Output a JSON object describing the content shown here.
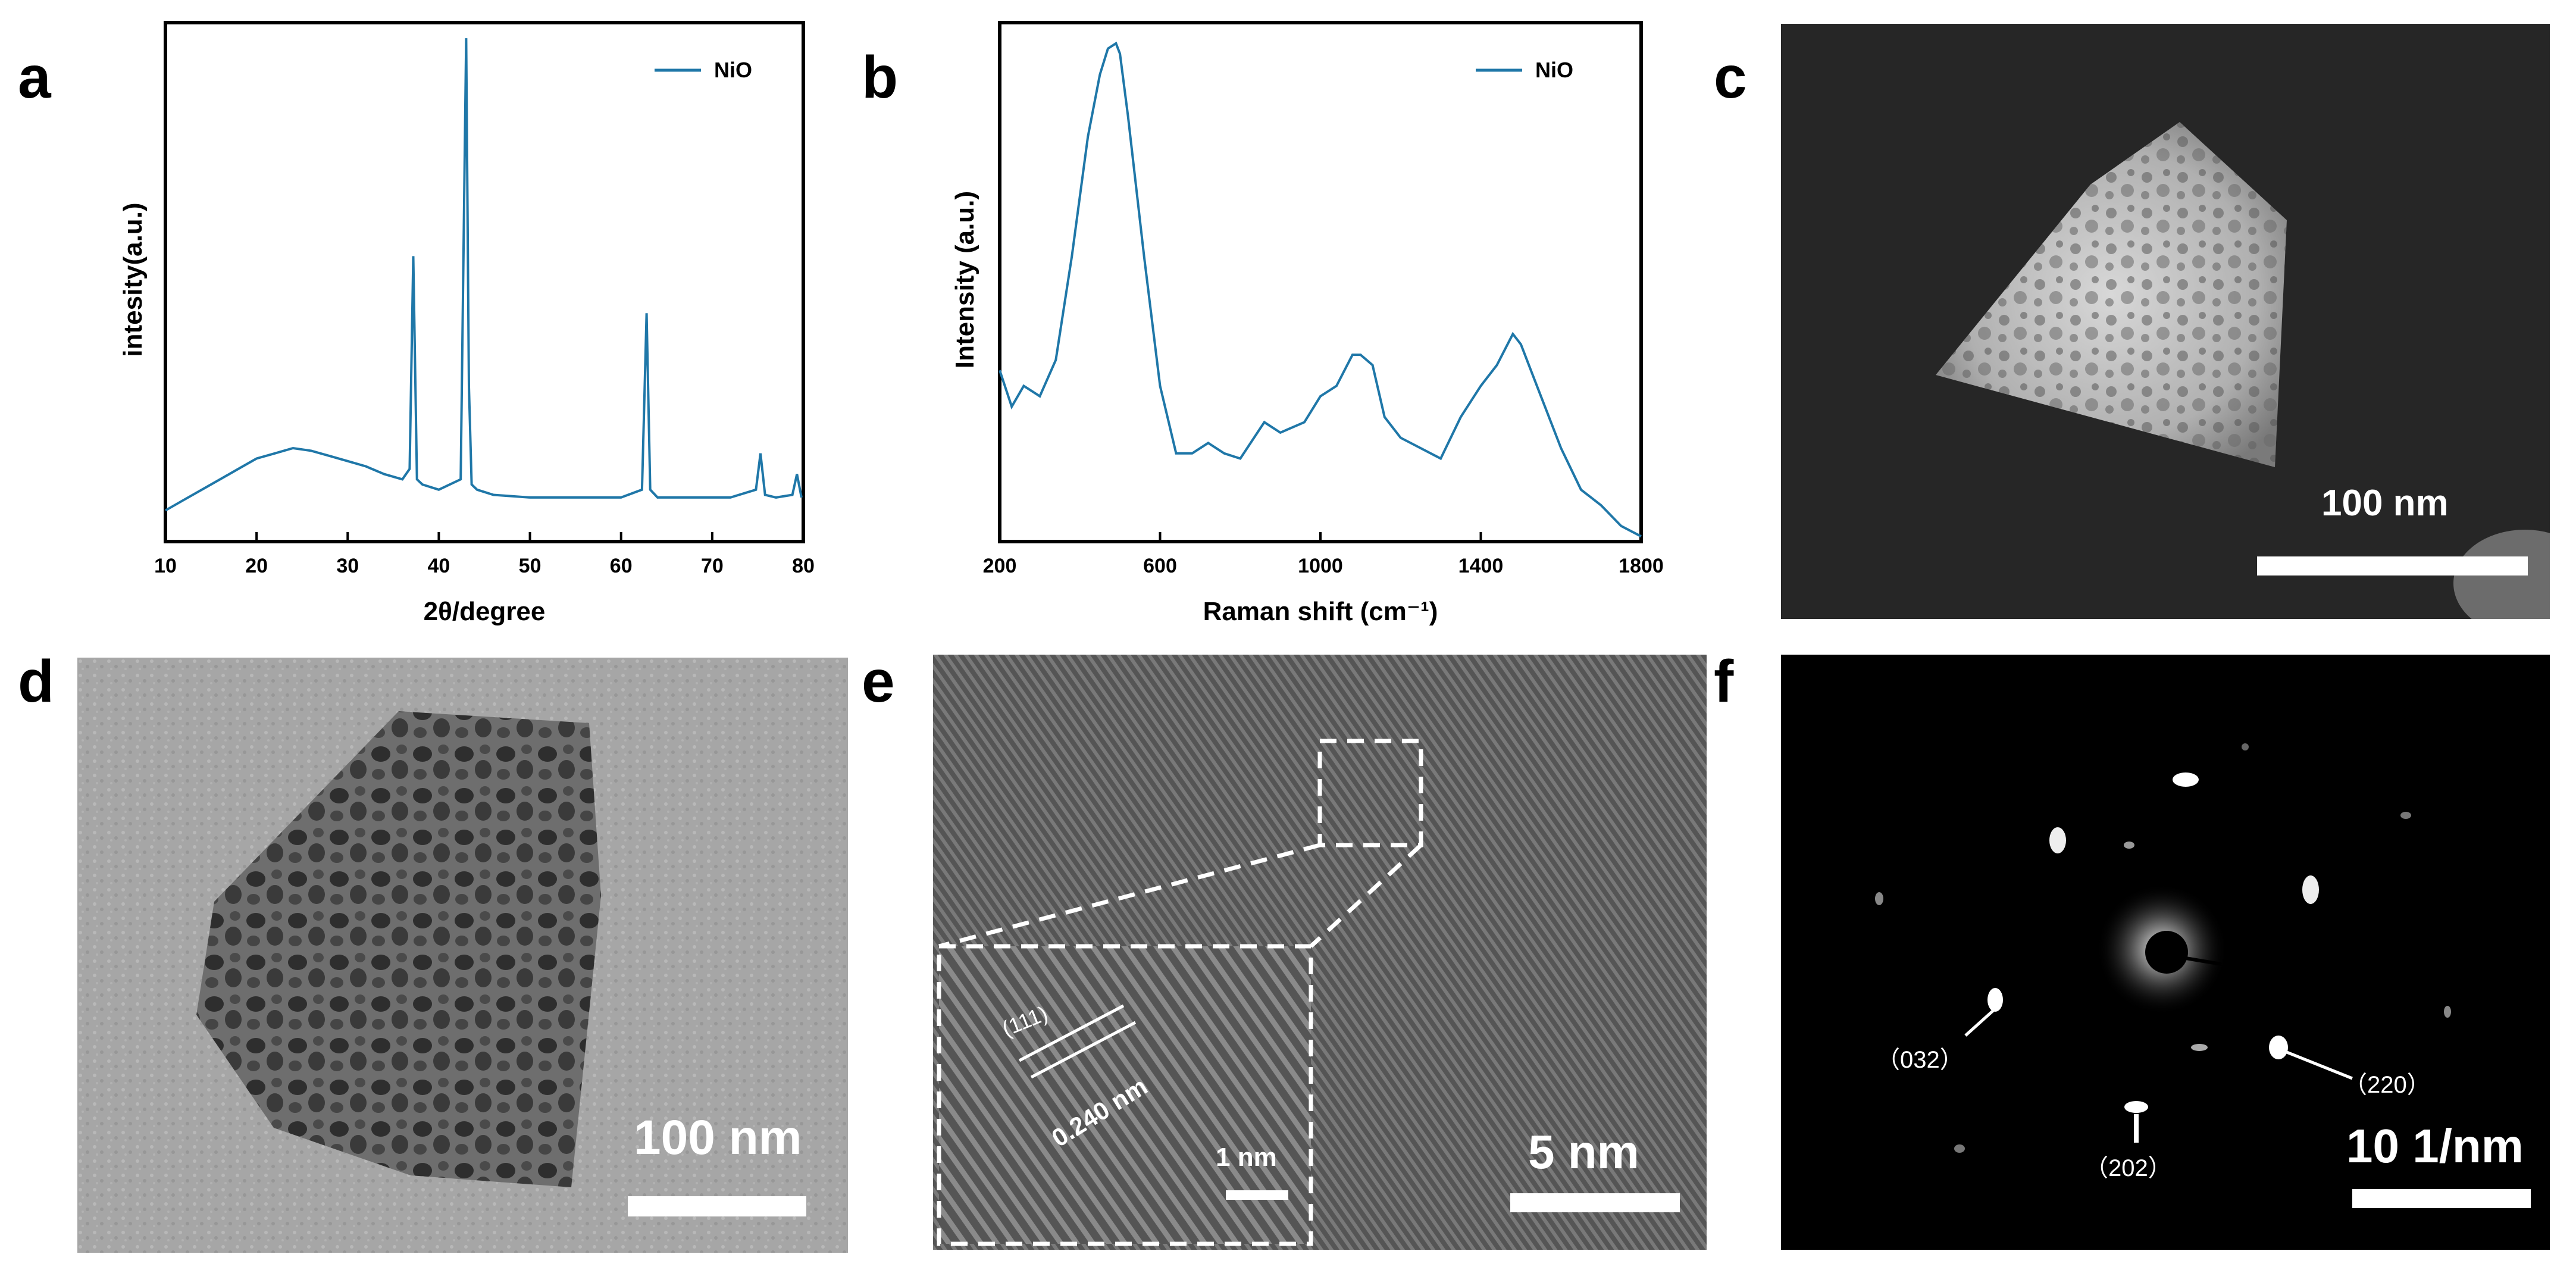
{
  "panels": {
    "a": "a",
    "b": "b",
    "c": "c",
    "d": "d",
    "e": "e",
    "f": "f"
  },
  "colors": {
    "line": "#1f77a8"
  },
  "chart_data": [
    {
      "type": "line",
      "panel": "a",
      "title": "",
      "xlabel": "2θ/degree",
      "ylabel": "intesity(a.u.)",
      "xlim": [
        10,
        80
      ],
      "ylim": [
        0,
        100
      ],
      "xticks": [
        10,
        20,
        30,
        40,
        50,
        60,
        70,
        80
      ],
      "legend": "NiO",
      "series": [
        {
          "name": "NiO",
          "x": [
            10,
            12,
            14,
            16,
            18,
            20,
            22,
            24,
            26,
            28,
            30,
            32,
            34,
            36,
            36.8,
            37.2,
            37.6,
            38.2,
            40,
            42.4,
            43.0,
            43.3,
            43.6,
            44.2,
            46,
            50,
            55,
            60,
            62.3,
            62.8,
            63.2,
            64,
            68,
            72,
            74.8,
            75.3,
            75.8,
            77,
            78.8,
            79.3,
            79.8
          ],
          "values": [
            6,
            8,
            10,
            12,
            14,
            16,
            17,
            18,
            17.5,
            16.5,
            15.5,
            14.5,
            13,
            12,
            14,
            55,
            12,
            11,
            10,
            12,
            97,
            30,
            11,
            10,
            9,
            8.5,
            8.5,
            8.5,
            10,
            44,
            10,
            8.5,
            8.5,
            8.5,
            10,
            17,
            9,
            8.5,
            9,
            13,
            8.5
          ]
        }
      ]
    },
    {
      "type": "line",
      "panel": "b",
      "title": "",
      "xlabel": "Raman shift (cm⁻¹)",
      "ylabel": "Intensity (a.u.)",
      "xlim": [
        200,
        1800
      ],
      "ylim": [
        0,
        100
      ],
      "xticks": [
        200,
        600,
        1000,
        1400,
        1800
      ],
      "legend": "NiO",
      "series": [
        {
          "name": "NiO",
          "x": [
            200,
            230,
            260,
            280,
            300,
            340,
            380,
            420,
            450,
            470,
            490,
            500,
            520,
            560,
            600,
            640,
            680,
            720,
            760,
            800,
            860,
            900,
            960,
            1000,
            1040,
            1080,
            1100,
            1130,
            1160,
            1200,
            1250,
            1300,
            1350,
            1400,
            1440,
            1480,
            1500,
            1540,
            1600,
            1650,
            1700,
            1750,
            1800
          ],
          "values": [
            33,
            26,
            30,
            29,
            28,
            35,
            55,
            78,
            90,
            95,
            96,
            94,
            82,
            55,
            30,
            17,
            17,
            19,
            17,
            16,
            23,
            21,
            23,
            28,
            30,
            36,
            36,
            34,
            24,
            20,
            18,
            16,
            24,
            30,
            34,
            40,
            38,
            30,
            18,
            10,
            7,
            3,
            1
          ]
        }
      ]
    }
  ],
  "images": {
    "c": {
      "scale_label": "100 nm"
    },
    "d": {
      "scale_label": "100 nm"
    },
    "e": {
      "scale_label": "5 nm",
      "inset_scale_label": "1 nm",
      "plane": "(111)",
      "spacing": "0.240 nm"
    },
    "f": {
      "scale_label": "10 1/nm",
      "spots": [
        "（032）",
        "（202）",
        "（220）"
      ]
    }
  }
}
